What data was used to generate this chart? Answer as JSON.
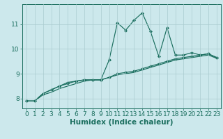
{
  "xlabel": "Humidex (Indice chaleur)",
  "x": [
    0,
    1,
    2,
    3,
    4,
    5,
    6,
    7,
    8,
    9,
    10,
    11,
    12,
    13,
    14,
    15,
    16,
    17,
    18,
    19,
    20,
    21,
    22,
    23
  ],
  "y_line1": [
    7.9,
    7.9,
    8.2,
    8.35,
    8.5,
    8.65,
    8.7,
    8.75,
    8.75,
    8.75,
    9.55,
    11.05,
    10.75,
    11.15,
    11.45,
    10.7,
    9.7,
    10.85,
    9.75,
    9.75,
    9.85,
    9.75,
    9.8,
    9.65
  ],
  "y_line2": [
    7.9,
    7.9,
    8.2,
    8.35,
    8.5,
    8.6,
    8.7,
    8.75,
    8.75,
    8.75,
    8.85,
    9.0,
    9.05,
    9.1,
    9.2,
    9.3,
    9.4,
    9.5,
    9.6,
    9.65,
    9.7,
    9.75,
    9.8,
    9.65
  ],
  "y_line3": [
    7.9,
    7.9,
    8.15,
    8.25,
    8.4,
    8.5,
    8.6,
    8.7,
    8.75,
    8.75,
    8.85,
    8.95,
    9.0,
    9.05,
    9.15,
    9.25,
    9.35,
    9.45,
    9.55,
    9.6,
    9.65,
    9.7,
    9.75,
    9.62
  ],
  "line_color": "#1a6e5e",
  "bg_color": "#cce8ec",
  "grid_color": "#aaccd0",
  "ylim": [
    7.6,
    11.8
  ],
  "yticks": [
    8,
    9,
    10,
    11
  ],
  "xtick_labels": [
    "0",
    "1",
    "2",
    "3",
    "4",
    "5",
    "6",
    "7",
    "8",
    "9",
    "10",
    "11",
    "12",
    "13",
    "14",
    "15",
    "16",
    "17",
    "18",
    "19",
    "20",
    "21",
    "22",
    "23"
  ],
  "xlabel_fontsize": 7.5,
  "tick_fontsize": 6.5,
  "marker": "D",
  "marker_size": 2.0,
  "linewidth": 0.85
}
